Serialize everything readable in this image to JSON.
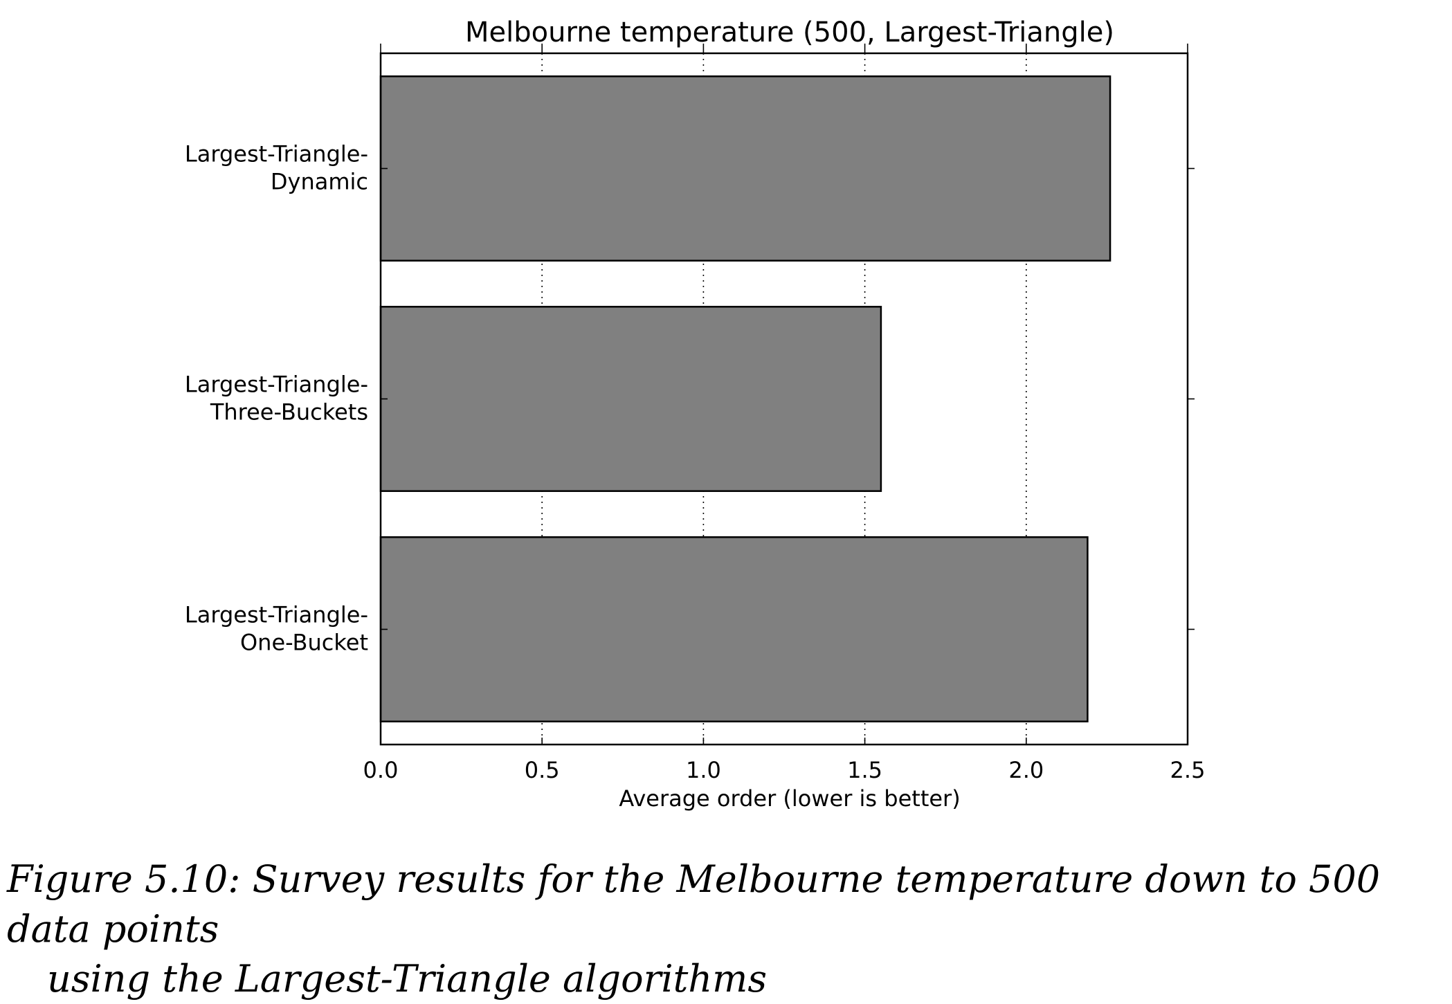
{
  "chart_data": {
    "type": "bar",
    "orientation": "horizontal",
    "title": "Melbourne temperature (500, Largest-Triangle)",
    "xlabel": "Average order (lower is better)",
    "ylabel": "",
    "xlim": [
      0,
      2.5
    ],
    "xticks": [
      "0.0",
      "0.5",
      "1.0",
      "1.5",
      "2.0",
      "2.5"
    ],
    "grid": "vertical dotted",
    "bar_color": "#808080",
    "categories": [
      [
        "Largest-Triangle-",
        "Dynamic"
      ],
      [
        "Largest-Triangle-",
        "Three-Buckets"
      ],
      [
        "Largest-Triangle-",
        "One-Bucket"
      ]
    ],
    "values": [
      2.26,
      1.55,
      2.19
    ]
  },
  "caption": {
    "line1": "Figure 5.10: Survey results for the Melbourne temperature down to 500 data points",
    "line2": "using the Largest-Triangle algorithms"
  }
}
